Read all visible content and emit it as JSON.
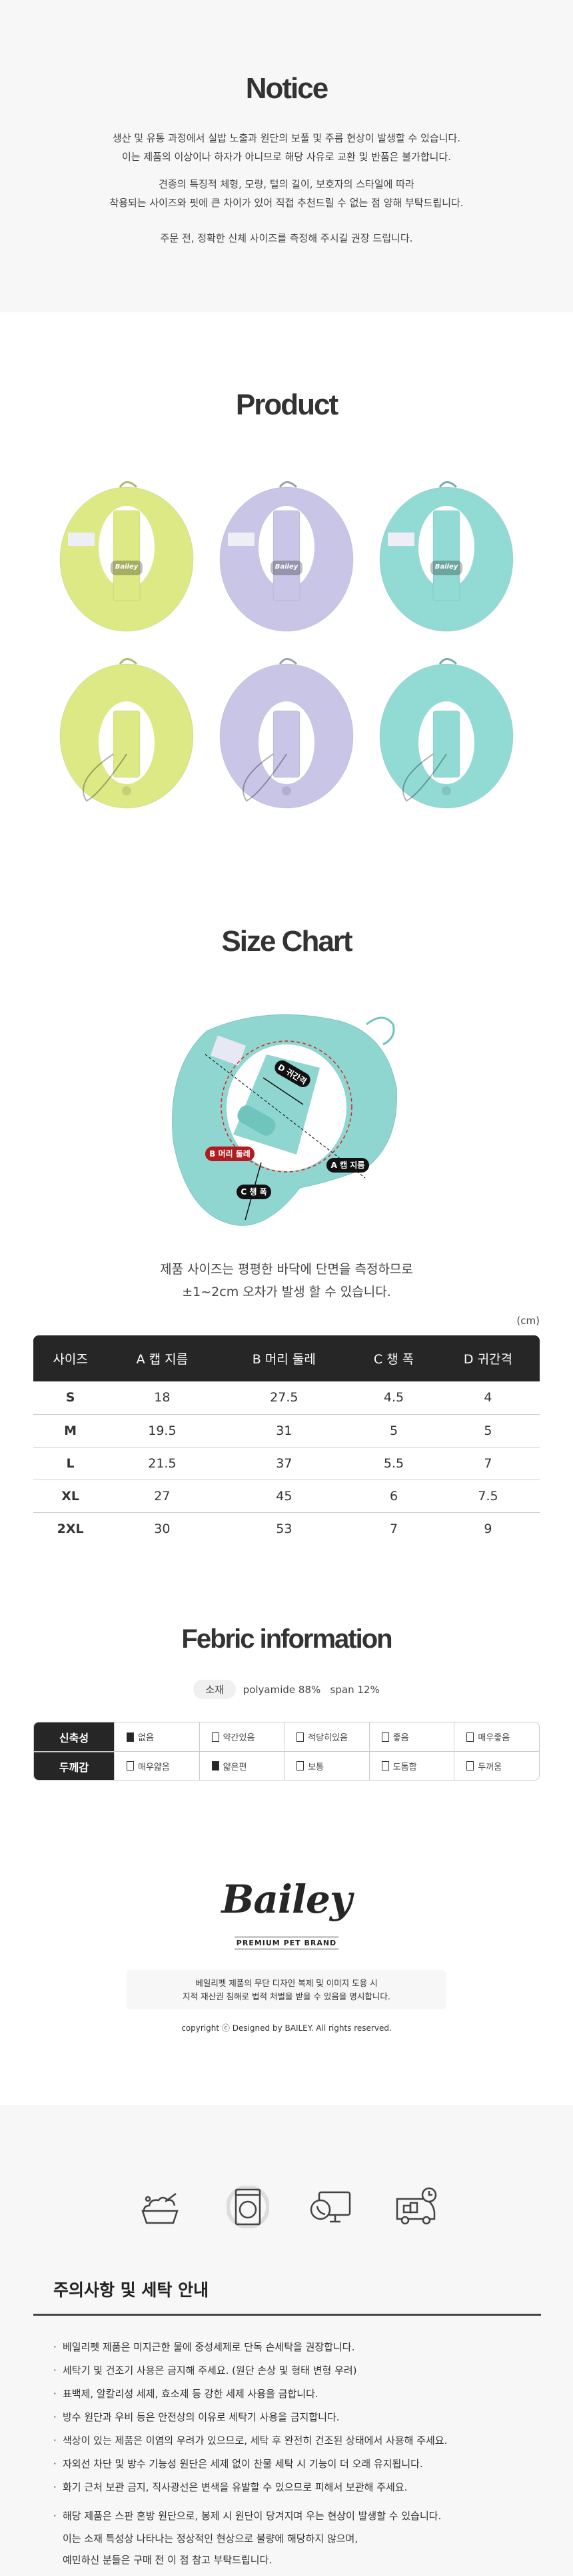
{
  "notice": {
    "title": "Notice",
    "paragraphs": [
      [
        "생산 및 유통 과정에서 실밥 노출과 원단의 보풀 및 주름 현상이 발생할 수 있습니다.",
        "이는 제품의 이상이나 하자가 아니므로 해당 사유로 교환 및 반품은 불가합니다."
      ],
      [
        "견종의 특징적 체형, 모량, 털의 길이, 보호자의 스타일에 따라",
        "착용되는 사이즈와 핏에 큰 차이가 있어 직접 추천드릴 수 없는 점 양해 부탁드립니다."
      ],
      [
        "주문 전, 정확한 신체 사이즈를 측정해 주시길 권장 드립니다."
      ]
    ]
  },
  "product": {
    "title": "Product",
    "colors": {
      "lime": "#dce985",
      "lavender": "#c8c5e6",
      "mint": "#92dbd5"
    },
    "tag_text": "Bailey"
  },
  "size_chart": {
    "title": "Size Chart",
    "diagram_labels": {
      "a": "A 캡 지름",
      "b": "B 머리 둘레",
      "c": "C 챙 폭",
      "d": "D 귀간격"
    },
    "note": [
      "제품 사이즈는 평평한 바닥에 단면을 측정하므로",
      "±1~2cm 오차가 발생 할 수 있습니다."
    ],
    "unit": "(cm)",
    "headers": [
      "사이즈",
      "A 캡 지름",
      "B 머리 둘레",
      "C 챙 폭",
      "D 귀간격"
    ],
    "rows": [
      [
        "S",
        "18",
        "27.5",
        "4.5",
        "4"
      ],
      [
        "M",
        "19.5",
        "31",
        "5",
        "5"
      ],
      [
        "L",
        "21.5",
        "37",
        "5.5",
        "7"
      ],
      [
        "XL",
        "27",
        "45",
        "6",
        "7.5"
      ],
      [
        "2XL",
        "30",
        "53",
        "7",
        "9"
      ]
    ]
  },
  "fabric": {
    "title": "Febric information",
    "material_label": "소재",
    "material_value": "polyamide 88%   span 12%",
    "rows": [
      {
        "label": "신축성",
        "options": [
          {
            "text": "없음",
            "checked": true
          },
          {
            "text": "약간있음",
            "checked": false
          },
          {
            "text": "적당히있음",
            "checked": false
          },
          {
            "text": "좋음",
            "checked": false
          },
          {
            "text": "매우좋음",
            "checked": false
          }
        ]
      },
      {
        "label": "두께감",
        "options": [
          {
            "text": "매우얇음",
            "checked": false
          },
          {
            "text": "얇은편",
            "checked": true
          },
          {
            "text": "보통",
            "checked": false
          },
          {
            "text": "도톰함",
            "checked": false
          },
          {
            "text": "두꺼움",
            "checked": false
          }
        ]
      }
    ]
  },
  "brand": {
    "logo": "Bailey",
    "tagline": "PREMIUM PET BRAND",
    "legal": [
      "베일리펫 제품의 무단 디자인 복제 및 이미지 도용 시",
      "지적 재산권 침해로 법적 처벌을 받을 수 있음을 명시합니다."
    ],
    "copyright": "copyright ⓒ Designed by BAILEY. All rights reserved."
  },
  "care": {
    "icons": [
      "hand-wash-icon",
      "no-dryer-icon",
      "customer-service-icon",
      "delivery-truck-icon"
    ],
    "title": "주의사항 및 세탁 안내",
    "items": [
      "베일리펫 제품은 미지근한 물에 중성세제로 단독 손세탁을 권장합니다.",
      "세탁기 및 건조기 사용은 금지해 주세요. (원단 손상 및 형태 변형 우려)",
      "표백제, 알칼리성 세제, 효소제 등 강한 세제 사용을 금합니다.",
      "방수 원단과 우비 등은 안전상의 이유로 세탁기 사용을 금지합니다.",
      "색상이 있는 제품은 이염의 우려가 있으므로, 세탁 후 완전히 건조된 상태에서 사용해 주세요.",
      "자외선 차단 및 방수 기능성 원단은 세제 없이 찬물 세탁 시 기능이 더 오래 유지됩니다.",
      "화기 근처 보관 금지, 직사광선은 변색을 유발할 수 있으므로 피해서 보관해 주세요."
    ],
    "last_item": [
      "해당 제품은 스판 혼방 원단으로, 봉제 시 원단이 당겨지며 우는 현상이 발생할 수 있습니다.",
      "이는 소재 특성상 나타나는 정상적인 현상으로 불량에 해당하지 않으며,",
      "예민하신 분들은 구매 전 이 점 참고 부탁드립니다."
    ]
  }
}
